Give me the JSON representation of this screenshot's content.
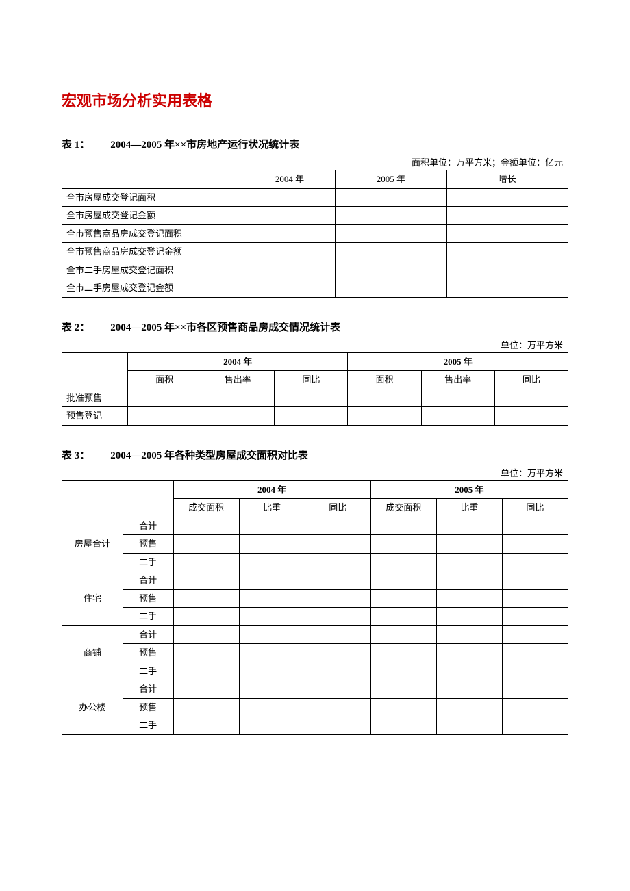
{
  "document": {
    "title": "宏观市场分析实用表格",
    "title_color": "#cc0000"
  },
  "table1": {
    "caption_prefix": "表 1：",
    "caption": "2004—2005 年××市房地产运行状况统计表",
    "unit": "面积单位：万平方米；金额单位：亿元",
    "columns": [
      "",
      "2004 年",
      "2005 年",
      "增长"
    ],
    "col_widths": [
      "36%",
      "18%",
      "22%",
      "24%"
    ],
    "rows": [
      {
        "label": "全市房屋成交登记面积"
      },
      {
        "label": "全市房屋成交登记金额"
      },
      {
        "label": "全市预售商品房成交登记面积"
      },
      {
        "label": "全市预售商品房成交登记金额"
      },
      {
        "label": "全市二手房屋成交登记面积"
      },
      {
        "label": "全市二手房屋成交登记金额"
      }
    ]
  },
  "table2": {
    "caption_prefix": "表 2：",
    "caption": "2004—2005 年××市各区预售商品房成交情况统计表",
    "unit": "单位：万平方米",
    "year1": "2004 年",
    "year2": "2005 年",
    "sub_cols": [
      "面积",
      "售出率",
      "同比"
    ],
    "row_labels": [
      "批准预售",
      "预售登记"
    ]
  },
  "table3": {
    "caption_prefix": "表 3：",
    "caption": "2004—2005 年各种类型房屋成交面积对比表",
    "unit": "单位：万平方米",
    "year1": "2004 年",
    "year2": "2005 年",
    "sub_cols": [
      "成交面积",
      "比重",
      "同比"
    ],
    "groups": [
      {
        "name": "房屋合计",
        "subs": [
          "合计",
          "预售",
          "二手"
        ]
      },
      {
        "name": "住宅",
        "subs": [
          "合计",
          "预售",
          "二手"
        ]
      },
      {
        "name": "商铺",
        "subs": [
          "合计",
          "预售",
          "二手"
        ]
      },
      {
        "name": "办公楼",
        "subs": [
          "合计",
          "预售",
          "二手"
        ]
      }
    ]
  },
  "style": {
    "border_color": "#000000",
    "background_color": "#ffffff",
    "body_font_family": "SimSun",
    "body_font_size_pt": 10,
    "title_font_size_pt": 16,
    "caption_font_size_pt": 11
  }
}
